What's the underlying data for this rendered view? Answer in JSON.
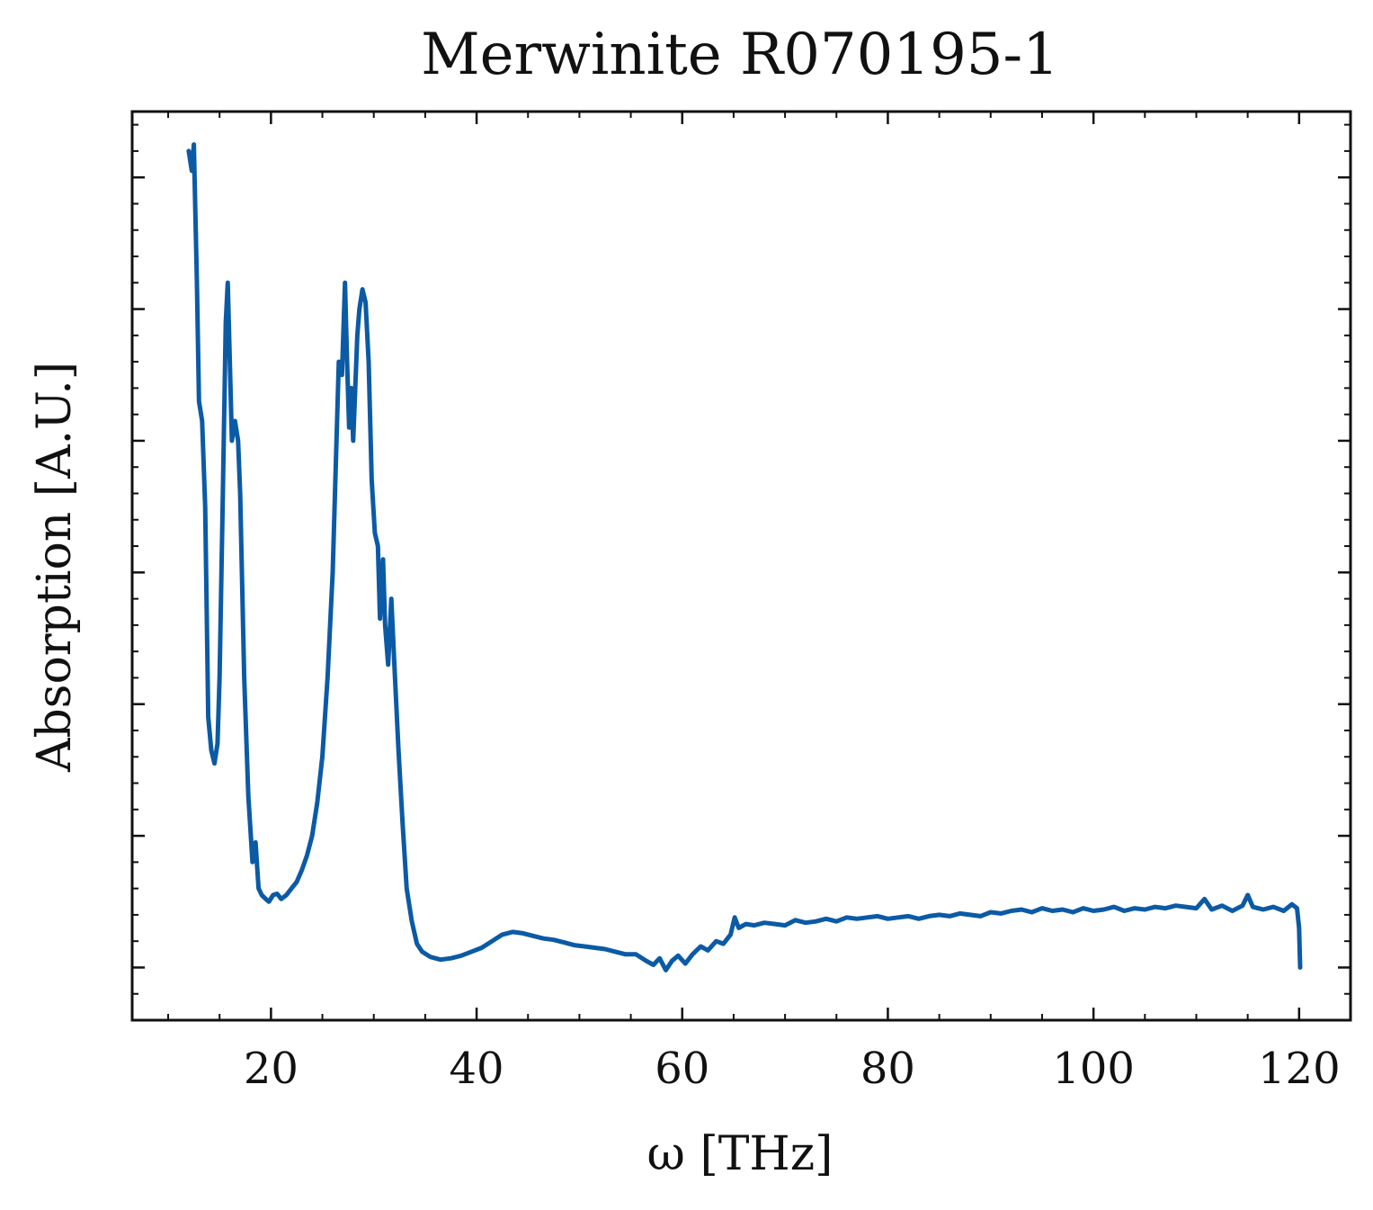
{
  "chart_data": {
    "type": "line",
    "title": "Merwinite R070195-1",
    "xlabel": "ω [THz]",
    "ylabel": "Absorption [A.U.]",
    "xlim": [
      6.5,
      125
    ],
    "ylim": [
      -0.4,
      6.5
    ],
    "x_ticks": [
      20,
      40,
      60,
      80,
      100,
      120
    ],
    "y_ticks": [
      0,
      1,
      2,
      3,
      4,
      5,
      6
    ],
    "y_tick_labels_shown": false,
    "grid": false,
    "legend": "none",
    "color": "#0b5aa6",
    "series": [
      {
        "points": [
          [
            12.0,
            6.2
          ],
          [
            12.3,
            6.05
          ],
          [
            12.5,
            6.25
          ],
          [
            12.8,
            5.2
          ],
          [
            13.0,
            4.3
          ],
          [
            13.3,
            4.15
          ],
          [
            13.6,
            3.5
          ],
          [
            13.9,
            1.9
          ],
          [
            14.2,
            1.65
          ],
          [
            14.5,
            1.55
          ],
          [
            14.8,
            1.7
          ],
          [
            15.0,
            2.2
          ],
          [
            15.3,
            3.5
          ],
          [
            15.6,
            4.9
          ],
          [
            15.8,
            5.2
          ],
          [
            16.0,
            4.6
          ],
          [
            16.2,
            4.0
          ],
          [
            16.5,
            4.15
          ],
          [
            16.8,
            4.0
          ],
          [
            17.0,
            3.6
          ],
          [
            17.4,
            2.2
          ],
          [
            17.8,
            1.3
          ],
          [
            18.2,
            0.8
          ],
          [
            18.5,
            0.95
          ],
          [
            18.8,
            0.6
          ],
          [
            19.1,
            0.55
          ],
          [
            19.5,
            0.52
          ],
          [
            19.8,
            0.5
          ],
          [
            20.2,
            0.55
          ],
          [
            20.6,
            0.56
          ],
          [
            21.0,
            0.52
          ],
          [
            21.5,
            0.55
          ],
          [
            22.0,
            0.6
          ],
          [
            22.5,
            0.65
          ],
          [
            23.0,
            0.74
          ],
          [
            23.5,
            0.85
          ],
          [
            24.0,
            1.0
          ],
          [
            24.5,
            1.25
          ],
          [
            25.0,
            1.6
          ],
          [
            25.5,
            2.2
          ],
          [
            26.0,
            3.0
          ],
          [
            26.3,
            3.8
          ],
          [
            26.6,
            4.6
          ],
          [
            26.9,
            4.5
          ],
          [
            27.2,
            5.2
          ],
          [
            27.4,
            4.6
          ],
          [
            27.6,
            4.1
          ],
          [
            27.8,
            4.4
          ],
          [
            28.0,
            4.0
          ],
          [
            28.2,
            4.4
          ],
          [
            28.4,
            4.8
          ],
          [
            28.6,
            5.0
          ],
          [
            28.9,
            5.15
          ],
          [
            29.2,
            5.05
          ],
          [
            29.5,
            4.6
          ],
          [
            29.8,
            3.7
          ],
          [
            30.1,
            3.3
          ],
          [
            30.4,
            3.2
          ],
          [
            30.6,
            2.65
          ],
          [
            30.9,
            3.1
          ],
          [
            31.1,
            2.6
          ],
          [
            31.4,
            2.3
          ],
          [
            31.7,
            2.8
          ],
          [
            32.0,
            2.3
          ],
          [
            32.4,
            1.65
          ],
          [
            32.8,
            1.1
          ],
          [
            33.2,
            0.6
          ],
          [
            33.7,
            0.35
          ],
          [
            34.2,
            0.18
          ],
          [
            34.7,
            0.12
          ],
          [
            35.5,
            0.08
          ],
          [
            36.5,
            0.06
          ],
          [
            37.5,
            0.07
          ],
          [
            38.5,
            0.09
          ],
          [
            39.5,
            0.12
          ],
          [
            40.5,
            0.15
          ],
          [
            41.5,
            0.2
          ],
          [
            42.5,
            0.25
          ],
          [
            43.5,
            0.27
          ],
          [
            44.5,
            0.26
          ],
          [
            45.5,
            0.24
          ],
          [
            46.5,
            0.22
          ],
          [
            47.5,
            0.21
          ],
          [
            48.5,
            0.19
          ],
          [
            49.5,
            0.17
          ],
          [
            50.5,
            0.16
          ],
          [
            51.5,
            0.15
          ],
          [
            52.5,
            0.14
          ],
          [
            53.5,
            0.12
          ],
          [
            54.5,
            0.1
          ],
          [
            55.5,
            0.1
          ],
          [
            56.5,
            0.05
          ],
          [
            57.2,
            0.02
          ],
          [
            57.8,
            0.07
          ],
          [
            58.4,
            -0.02
          ],
          [
            59.0,
            0.05
          ],
          [
            59.6,
            0.09
          ],
          [
            60.3,
            0.03
          ],
          [
            61.0,
            0.1
          ],
          [
            61.8,
            0.16
          ],
          [
            62.5,
            0.13
          ],
          [
            63.3,
            0.2
          ],
          [
            64.0,
            0.18
          ],
          [
            64.7,
            0.25
          ],
          [
            65.1,
            0.38
          ],
          [
            65.5,
            0.3
          ],
          [
            66.2,
            0.33
          ],
          [
            67.0,
            0.32
          ],
          [
            68.0,
            0.34
          ],
          [
            69.0,
            0.33
          ],
          [
            70.0,
            0.32
          ],
          [
            71.0,
            0.36
          ],
          [
            72.0,
            0.34
          ],
          [
            73.0,
            0.35
          ],
          [
            74.0,
            0.37
          ],
          [
            75.0,
            0.35
          ],
          [
            76.0,
            0.38
          ],
          [
            77.0,
            0.37
          ],
          [
            78.0,
            0.38
          ],
          [
            79.0,
            0.39
          ],
          [
            80.0,
            0.37
          ],
          [
            81.0,
            0.38
          ],
          [
            82.0,
            0.39
          ],
          [
            83.0,
            0.37
          ],
          [
            84.0,
            0.39
          ],
          [
            85.0,
            0.4
          ],
          [
            86.0,
            0.39
          ],
          [
            87.0,
            0.41
          ],
          [
            88.0,
            0.4
          ],
          [
            89.0,
            0.39
          ],
          [
            90.0,
            0.42
          ],
          [
            91.0,
            0.41
          ],
          [
            92.0,
            0.43
          ],
          [
            93.0,
            0.44
          ],
          [
            94.0,
            0.42
          ],
          [
            95.0,
            0.45
          ],
          [
            96.0,
            0.43
          ],
          [
            97.0,
            0.44
          ],
          [
            98.0,
            0.42
          ],
          [
            99.0,
            0.45
          ],
          [
            100.0,
            0.43
          ],
          [
            101.0,
            0.44
          ],
          [
            102.0,
            0.46
          ],
          [
            103.0,
            0.43
          ],
          [
            104.0,
            0.45
          ],
          [
            105.0,
            0.44
          ],
          [
            106.0,
            0.46
          ],
          [
            107.0,
            0.45
          ],
          [
            108.0,
            0.47
          ],
          [
            109.0,
            0.46
          ],
          [
            110.0,
            0.45
          ],
          [
            110.8,
            0.52
          ],
          [
            111.5,
            0.44
          ],
          [
            112.5,
            0.47
          ],
          [
            113.5,
            0.43
          ],
          [
            114.5,
            0.47
          ],
          [
            115.0,
            0.55
          ],
          [
            115.5,
            0.46
          ],
          [
            116.5,
            0.44
          ],
          [
            117.5,
            0.46
          ],
          [
            118.5,
            0.43
          ],
          [
            119.3,
            0.48
          ],
          [
            119.8,
            0.45
          ],
          [
            120.0,
            0.3
          ],
          [
            120.1,
            0.0
          ]
        ]
      }
    ]
  }
}
